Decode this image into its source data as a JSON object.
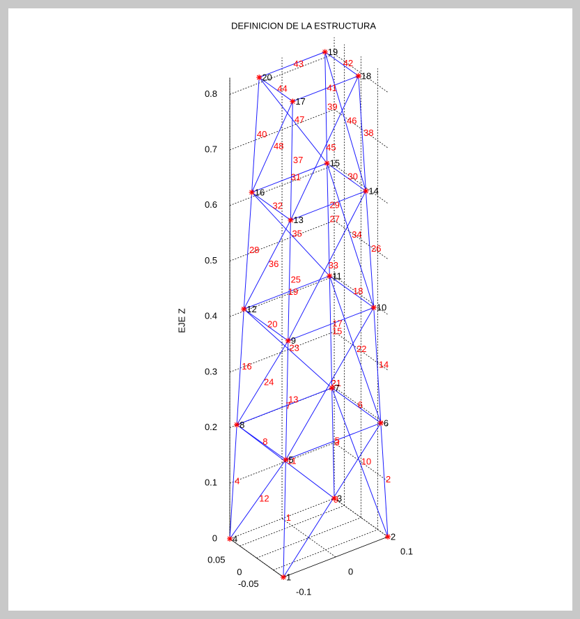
{
  "chart_data": {
    "type": "truss3d",
    "title": "DEFINICION DE LA ESTRUCTURA",
    "zlabel": "EJE Z",
    "xlim": [
      -0.1,
      0.1
    ],
    "ylim": [
      -0.08,
      0.08
    ],
    "zlim": [
      0,
      0.83
    ],
    "xticks": [
      -0.1,
      0,
      0.1
    ],
    "yticks": [
      -0.05,
      0,
      0.05
    ],
    "zticks": [
      0,
      0.1,
      0.2,
      0.3,
      0.4,
      0.5,
      0.6,
      0.7,
      0.8
    ],
    "grid": true,
    "member_color": "#1a1aff",
    "node_color": "#ff0000",
    "node_label_color": "#000000",
    "member_label_color": "#ff0000",
    "nodes": [
      {
        "label": "1",
        "x": -0.1,
        "y": -0.08,
        "z": 0
      },
      {
        "label": "2",
        "x": 0.1,
        "y": -0.08,
        "z": 0
      },
      {
        "label": "3",
        "x": 0.1,
        "y": 0.08,
        "z": 0
      },
      {
        "label": "4",
        "x": -0.1,
        "y": 0.08,
        "z": 0
      },
      {
        "label": "5",
        "x": -0.091,
        "y": -0.073,
        "z": 0.205
      },
      {
        "label": "6",
        "x": 0.091,
        "y": -0.073,
        "z": 0.205
      },
      {
        "label": "7",
        "x": 0.091,
        "y": 0.073,
        "z": 0.205
      },
      {
        "label": "8",
        "x": -0.091,
        "y": 0.073,
        "z": 0.205
      },
      {
        "label": "9",
        "x": -0.082,
        "y": -0.066,
        "z": 0.413
      },
      {
        "label": "10",
        "x": 0.082,
        "y": -0.066,
        "z": 0.413
      },
      {
        "label": "11",
        "x": 0.082,
        "y": 0.066,
        "z": 0.413
      },
      {
        "label": "12",
        "x": -0.082,
        "y": 0.066,
        "z": 0.413
      },
      {
        "label": "13",
        "x": -0.072,
        "y": -0.058,
        "z": 0.623
      },
      {
        "label": "14",
        "x": 0.072,
        "y": -0.058,
        "z": 0.623
      },
      {
        "label": "15",
        "x": 0.072,
        "y": 0.058,
        "z": 0.623
      },
      {
        "label": "16",
        "x": -0.072,
        "y": 0.058,
        "z": 0.623
      },
      {
        "label": "17",
        "x": -0.063,
        "y": -0.05,
        "z": 0.83
      },
      {
        "label": "18",
        "x": 0.063,
        "y": -0.05,
        "z": 0.83
      },
      {
        "label": "19",
        "x": 0.063,
        "y": 0.05,
        "z": 0.83
      },
      {
        "label": "20",
        "x": -0.063,
        "y": 0.05,
        "z": 0.83
      }
    ],
    "members": [
      {
        "label": "1",
        "nodes": [
          0,
          4
        ]
      },
      {
        "label": "2",
        "nodes": [
          1,
          5
        ]
      },
      {
        "label": "3",
        "nodes": [
          2,
          6
        ]
      },
      {
        "label": "4",
        "nodes": [
          3,
          7
        ]
      },
      {
        "label": "5",
        "nodes": [
          4,
          5
        ]
      },
      {
        "label": "6",
        "nodes": [
          5,
          6
        ]
      },
      {
        "label": "7",
        "nodes": [
          6,
          7
        ]
      },
      {
        "label": "8",
        "nodes": [
          7,
          4
        ]
      },
      {
        "label": "9",
        "nodes": [
          0,
          5
        ]
      },
      {
        "label": "10",
        "nodes": [
          1,
          6
        ]
      },
      {
        "label": "11",
        "nodes": [
          2,
          7
        ]
      },
      {
        "label": "12",
        "nodes": [
          3,
          4
        ]
      },
      {
        "label": "13",
        "nodes": [
          4,
          8
        ]
      },
      {
        "label": "14",
        "nodes": [
          5,
          9
        ]
      },
      {
        "label": "15",
        "nodes": [
          6,
          10
        ]
      },
      {
        "label": "16",
        "nodes": [
          7,
          11
        ]
      },
      {
        "label": "17",
        "nodes": [
          8,
          9
        ]
      },
      {
        "label": "18",
        "nodes": [
          9,
          10
        ]
      },
      {
        "label": "19",
        "nodes": [
          10,
          11
        ]
      },
      {
        "label": "20",
        "nodes": [
          11,
          8
        ]
      },
      {
        "label": "21",
        "nodes": [
          4,
          9
        ]
      },
      {
        "label": "22",
        "nodes": [
          5,
          10
        ]
      },
      {
        "label": "23",
        "nodes": [
          6,
          11
        ]
      },
      {
        "label": "24",
        "nodes": [
          7,
          8
        ]
      },
      {
        "label": "25",
        "nodes": [
          8,
          12
        ]
      },
      {
        "label": "26",
        "nodes": [
          9,
          13
        ]
      },
      {
        "label": "27",
        "nodes": [
          10,
          14
        ]
      },
      {
        "label": "28",
        "nodes": [
          11,
          15
        ]
      },
      {
        "label": "29",
        "nodes": [
          12,
          13
        ]
      },
      {
        "label": "30",
        "nodes": [
          13,
          14
        ]
      },
      {
        "label": "31",
        "nodes": [
          14,
          15
        ]
      },
      {
        "label": "32",
        "nodes": [
          15,
          12
        ]
      },
      {
        "label": "33",
        "nodes": [
          8,
          13
        ]
      },
      {
        "label": "34",
        "nodes": [
          9,
          14
        ]
      },
      {
        "label": "35",
        "nodes": [
          10,
          15
        ]
      },
      {
        "label": "36",
        "nodes": [
          11,
          12
        ]
      },
      {
        "label": "37",
        "nodes": [
          12,
          16
        ]
      },
      {
        "label": "38",
        "nodes": [
          13,
          17
        ]
      },
      {
        "label": "39",
        "nodes": [
          14,
          18
        ]
      },
      {
        "label": "40",
        "nodes": [
          15,
          19
        ]
      },
      {
        "label": "41",
        "nodes": [
          16,
          17
        ]
      },
      {
        "label": "42",
        "nodes": [
          17,
          18
        ]
      },
      {
        "label": "43",
        "nodes": [
          18,
          19
        ]
      },
      {
        "label": "44",
        "nodes": [
          19,
          16
        ]
      },
      {
        "label": "45",
        "nodes": [
          12,
          17
        ]
      },
      {
        "label": "46",
        "nodes": [
          13,
          18
        ]
      },
      {
        "label": "47",
        "nodes": [
          14,
          19
        ]
      },
      {
        "label": "48",
        "nodes": [
          15,
          16
        ]
      }
    ]
  }
}
